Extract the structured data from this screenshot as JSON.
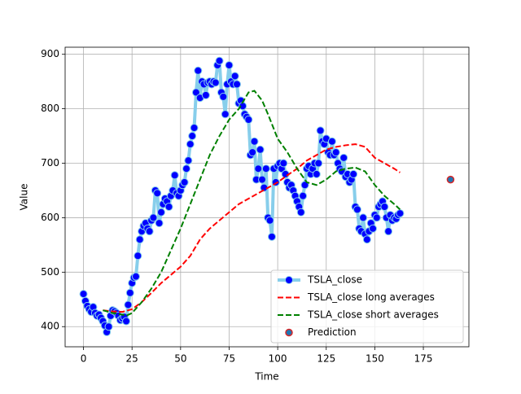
{
  "chart_data": {
    "type": "line",
    "xlabel": "Time",
    "ylabel": "Value",
    "xlim": [
      -9.45,
      198.45
    ],
    "ylim": [
      363,
      913
    ],
    "xticks": [
      0,
      25,
      50,
      75,
      100,
      125,
      150,
      175
    ],
    "yticks": [
      400,
      500,
      600,
      700,
      800,
      900
    ],
    "grid": true,
    "legend": "lower right",
    "x": [
      0,
      1,
      2,
      3,
      4,
      5,
      6,
      7,
      8,
      9,
      10,
      11,
      12,
      13,
      14,
      15,
      16,
      17,
      18,
      19,
      20,
      21,
      22,
      23,
      24,
      25,
      26,
      27,
      28,
      29,
      30,
      31,
      32,
      33,
      34,
      35,
      36,
      37,
      38,
      39,
      40,
      41,
      42,
      43,
      44,
      45,
      46,
      47,
      48,
      49,
      50,
      51,
      52,
      53,
      54,
      55,
      56,
      57,
      58,
      59,
      60,
      61,
      62,
      63,
      64,
      65,
      66,
      67,
      68,
      69,
      70,
      71,
      72,
      73,
      74,
      75,
      76,
      77,
      78,
      79,
      80,
      81,
      82,
      83,
      84,
      85,
      86,
      87,
      88,
      89,
      90,
      91,
      92,
      93,
      94,
      95,
      96,
      97,
      98,
      99,
      100,
      101,
      102,
      103,
      104,
      105,
      106,
      107,
      108,
      109,
      110,
      111,
      112,
      113,
      114,
      115,
      116,
      117,
      118,
      119,
      120,
      121,
      122,
      123,
      124,
      125,
      126,
      127,
      128,
      129,
      130,
      131,
      132,
      133,
      134,
      135,
      136,
      137,
      138,
      139,
      140,
      141,
      142,
      143,
      144,
      145,
      146,
      147,
      148,
      149,
      150,
      151,
      152,
      153,
      154,
      155,
      156,
      157,
      158,
      159,
      160,
      161,
      162,
      163
    ],
    "series": [
      {
        "name": "TSLA_close",
        "type": "line",
        "color": "#87ceeb",
        "marker_color": "#0000ff",
        "values": [
          460,
          447,
          438,
          432,
          427,
          436,
          425,
          420,
          422,
          416,
          410,
          402,
          390,
          400,
          420,
          430,
          428,
          425,
          420,
          412,
          415,
          418,
          410,
          440,
          462,
          480,
          490,
          492,
          530,
          560,
          575,
          585,
          590,
          580,
          575,
          595,
          600,
          650,
          645,
          590,
          610,
          625,
          635,
          630,
          620,
          640,
          650,
          678,
          645,
          640,
          650,
          660,
          665,
          690,
          705,
          735,
          750,
          765,
          830,
          870,
          820,
          850,
          845,
          825,
          848,
          850,
          845,
          850,
          848,
          880,
          888,
          830,
          822,
          790,
          845,
          880,
          850,
          845,
          860,
          845,
          810,
          815,
          805,
          790,
          785,
          780,
          715,
          720,
          740,
          670,
          690,
          725,
          670,
          655,
          690,
          600,
          595,
          565,
          690,
          665,
          695,
          700,
          690,
          700,
          680,
          665,
          655,
          660,
          650,
          640,
          630,
          620,
          610,
          640,
          660,
          690,
          695,
          680,
          690,
          700,
          680,
          700,
          760,
          740,
          735,
          745,
          720,
          715,
          740,
          715,
          720,
          700,
          690,
          685,
          710,
          675,
          680,
          665,
          670,
          680,
          620,
          615,
          580,
          575,
          600,
          570,
          560,
          575,
          590,
          580,
          605,
          600,
          620,
          625,
          630,
          620,
          600,
          575,
          605,
          595,
          600,
          598,
          605,
          608
        ]
      },
      {
        "name": "TSLA_close long averages",
        "type": "dashed",
        "color": "#ff0000",
        "x": [
          10,
          15,
          20,
          25,
          30,
          35,
          40,
          45,
          50,
          55,
          60,
          65,
          70,
          75,
          80,
          85,
          90,
          95,
          100,
          105,
          110,
          115,
          120,
          125,
          130,
          135,
          140,
          145,
          150,
          155,
          160,
          163
        ],
        "values": [
          430,
          428,
          427,
          432,
          445,
          462,
          480,
          495,
          510,
          530,
          560,
          580,
          595,
          610,
          625,
          635,
          645,
          655,
          665,
          678,
          690,
          705,
          715,
          725,
          730,
          733,
          735,
          730,
          710,
          700,
          690,
          683
        ]
      },
      {
        "name": "TSLA_close short averages",
        "type": "dashed",
        "color": "#008000",
        "x": [
          10,
          15,
          20,
          22,
          25,
          30,
          35,
          40,
          45,
          50,
          55,
          60,
          65,
          70,
          75,
          80,
          85,
          88,
          92,
          95,
          100,
          105,
          110,
          115,
          120,
          125,
          130,
          135,
          140,
          145,
          150,
          155,
          160,
          163
        ],
        "values": [
          430,
          425,
          422,
          420,
          425,
          445,
          470,
          500,
          540,
          580,
          625,
          670,
          715,
          750,
          780,
          800,
          830,
          833,
          815,
          790,
          745,
          720,
          690,
          665,
          660,
          670,
          685,
          690,
          692,
          685,
          660,
          640,
          625,
          615
        ]
      },
      {
        "name": "Prediction",
        "type": "scatter",
        "color": "#1f77b4",
        "edge_color": "#d62728",
        "x": [
          189
        ],
        "values": [
          670
        ]
      }
    ]
  }
}
